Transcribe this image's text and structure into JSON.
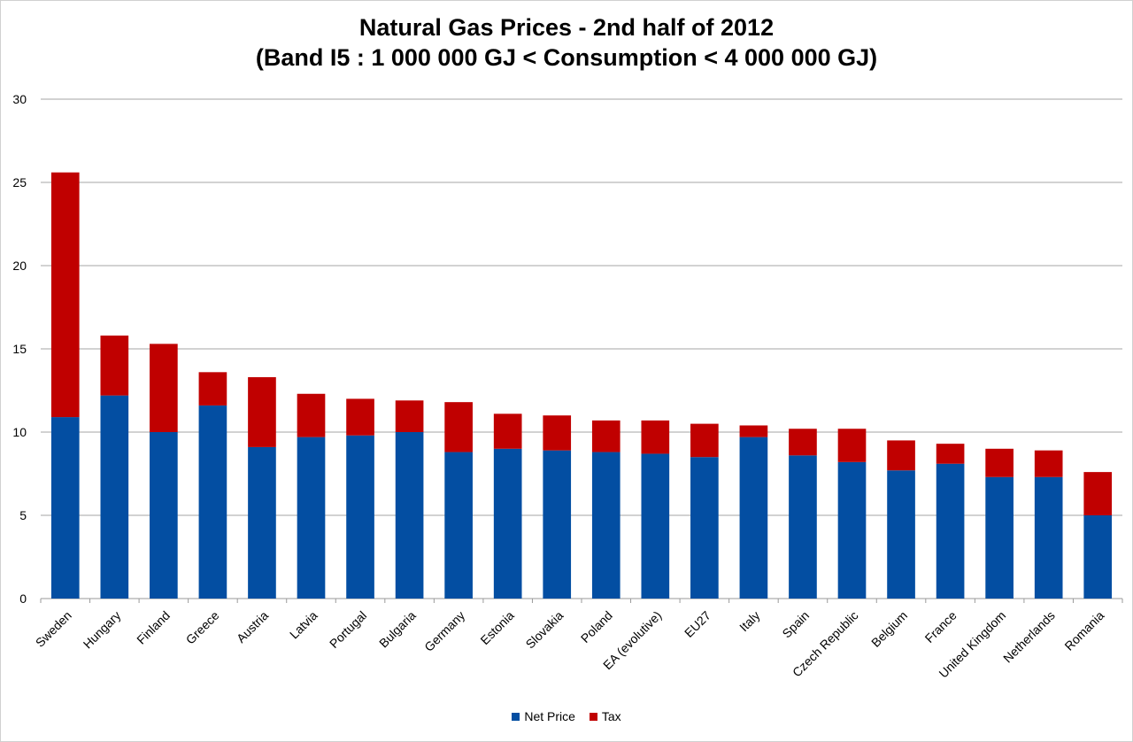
{
  "chart_data": {
    "type": "bar",
    "stacked": true,
    "title": "Natural Gas Prices - 2nd half of 2012",
    "subtitle": "(Band I5 : 1 000 000 GJ < Consumption < 4 000 000 GJ)",
    "xlabel": "",
    "ylabel": "",
    "ylim": [
      0,
      30
    ],
    "yticks": [
      "0",
      "5",
      "10",
      "15",
      "20",
      "25",
      "30"
    ],
    "grid": true,
    "legend_position": "bottom",
    "categories": [
      "Sweden",
      "Hungary",
      "Finland",
      "Greece",
      "Austria",
      "Latvia",
      "Portugal",
      "Bulgaria",
      "Germany",
      "Estonia",
      "Slovakia",
      "Poland",
      "EA (evolutive)",
      "EU27",
      "Italy",
      "Spain",
      "Czech Republic",
      "Belgium",
      "France",
      "United Kingdom",
      "Netherlands",
      "Romania"
    ],
    "series": [
      {
        "name": "Net Price",
        "color": "#034EA2",
        "values": [
          10.9,
          12.2,
          10.0,
          11.6,
          9.1,
          9.7,
          9.8,
          10.0,
          8.8,
          9.0,
          8.9,
          8.8,
          8.7,
          8.5,
          9.7,
          8.6,
          8.2,
          7.7,
          8.1,
          7.3,
          7.3,
          5.0
        ]
      },
      {
        "name": "Tax",
        "color": "#C00000",
        "values": [
          14.7,
          3.6,
          5.3,
          2.0,
          4.2,
          2.6,
          2.2,
          1.9,
          3.0,
          2.1,
          2.1,
          1.9,
          2.0,
          2.0,
          0.7,
          1.6,
          2.0,
          1.8,
          1.2,
          1.7,
          1.6,
          2.6
        ]
      }
    ]
  }
}
